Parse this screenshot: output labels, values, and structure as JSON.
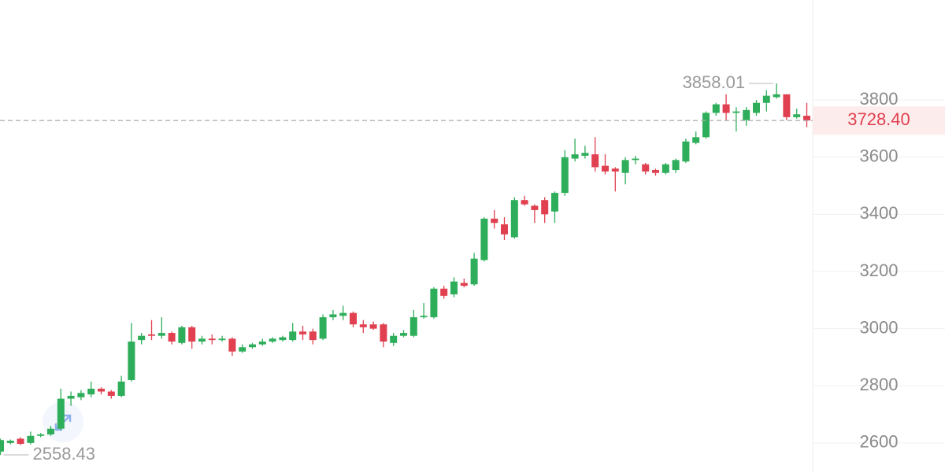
{
  "chart_data": {
    "type": "candlestick",
    "open": [
      2570,
      2600,
      2615,
      2600,
      2625,
      2630,
      2650,
      2755,
      2760,
      2770,
      2790,
      2780,
      2765,
      2820,
      2960,
      2980,
      2975,
      2985,
      2950,
      3005,
      2955,
      2965,
      2960,
      2965,
      2920,
      2935,
      2945,
      2955,
      2960,
      2960,
      2990,
      2990,
      2965,
      3040,
      3045,
      3055,
      3015,
      3015,
      3015,
      2950,
      2975,
      2975,
      3040,
      3040,
      3140,
      3120,
      3160,
      3155,
      3240,
      3385,
      3365,
      3320,
      3450,
      3430,
      3450,
      3410,
      3475,
      3595,
      3605,
      3610,
      3570,
      3560,
      3545,
      3590,
      3575,
      3555,
      3545,
      3555,
      3585,
      3650,
      3670,
      3755,
      3785,
      3755,
      3730,
      3755,
      3790,
      3810,
      3820,
      3740,
      3745
    ],
    "high": [
      2615,
      2612,
      2620,
      2640,
      2635,
      2660,
      2790,
      2780,
      2785,
      2815,
      2795,
      2785,
      2835,
      3020,
      2985,
      3030,
      3040,
      2990,
      3010,
      3010,
      2975,
      2980,
      2975,
      2970,
      2945,
      2950,
      2965,
      2970,
      2975,
      3020,
      3010,
      3000,
      3050,
      3065,
      3080,
      3060,
      3030,
      3025,
      3020,
      2985,
      2995,
      3065,
      3090,
      3145,
      3150,
      3180,
      3175,
      3265,
      3390,
      3415,
      3390,
      3460,
      3465,
      3435,
      3460,
      3480,
      3625,
      3665,
      3640,
      3670,
      3610,
      3565,
      3600,
      3605,
      3580,
      3560,
      3580,
      3595,
      3665,
      3690,
      3760,
      3790,
      3820,
      3775,
      3775,
      3800,
      3835,
      3858.01,
      3820,
      3770,
      3790
    ],
    "low": [
      2558.43,
      2595,
      2593,
      2595,
      2620,
      2625,
      2645,
      2730,
      2750,
      2760,
      2770,
      2755,
      2760,
      2815,
      2945,
      2960,
      2965,
      2945,
      2945,
      2930,
      2945,
      2945,
      2955,
      2905,
      2915,
      2930,
      2940,
      2950,
      2955,
      2955,
      2960,
      2945,
      2960,
      3030,
      3030,
      3005,
      2985,
      2995,
      2935,
      2940,
      2970,
      2970,
      3035,
      3035,
      3105,
      3110,
      3145,
      3150,
      3235,
      3350,
      3310,
      3315,
      3430,
      3370,
      3370,
      3370,
      3465,
      3585,
      3595,
      3550,
      3540,
      3480,
      3505,
      3575,
      3540,
      3535,
      3540,
      3545,
      3580,
      3645,
      3665,
      3745,
      3730,
      3690,
      3710,
      3745,
      3760,
      3805,
      3730,
      3735,
      3705
    ],
    "close": [
      2610,
      2608,
      2597,
      2625,
      2630,
      2650,
      2755,
      2765,
      2775,
      2790,
      2780,
      2765,
      2815,
      2955,
      2975,
      2975,
      2985,
      2955,
      3005,
      2955,
      2965,
      2960,
      2965,
      2920,
      2935,
      2945,
      2955,
      2965,
      2970,
      2990,
      2980,
      2960,
      3040,
      3050,
      3055,
      3015,
      3005,
      3000,
      2955,
      2975,
      2985,
      3040,
      3045,
      3140,
      3115,
      3165,
      3150,
      3245,
      3385,
      3370,
      3330,
      3450,
      3435,
      3415,
      3400,
      3475,
      3600,
      3610,
      3615,
      3565,
      3550,
      3550,
      3590,
      3595,
      3550,
      3545,
      3575,
      3590,
      3655,
      3670,
      3755,
      3785,
      3755,
      3760,
      3765,
      3790,
      3815,
      3820,
      3740,
      3750,
      3728.4
    ],
    "up_color": "#2eae5a",
    "down_color": "#e0404f",
    "last_price_label": "3728.40",
    "ylim": [
      2495,
      4150
    ],
    "yticks": [
      2600,
      2800,
      3000,
      3200,
      3400,
      3600,
      3800
    ]
  }
}
